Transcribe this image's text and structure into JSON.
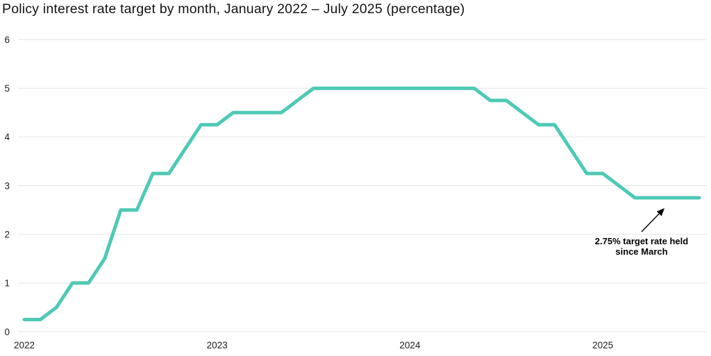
{
  "chart_data": {
    "type": "line",
    "title": "Policy interest rate target by month, January 2022 – July 2025 (percentage)",
    "x": [
      "Jan 2022",
      "Feb 2022",
      "Mar 2022",
      "Apr 2022",
      "May 2022",
      "Jun 2022",
      "Jul 2022",
      "Aug 2022",
      "Sep 2022",
      "Oct 2022",
      "Nov 2022",
      "Dec 2022",
      "Jan 2023",
      "Feb 2023",
      "Mar 2023",
      "Apr 2023",
      "May 2023",
      "Jun 2023",
      "Jul 2023",
      "Aug 2023",
      "Sep 2023",
      "Oct 2023",
      "Nov 2023",
      "Dec 2023",
      "Jan 2024",
      "Feb 2024",
      "Mar 2024",
      "Apr 2024",
      "May 2024",
      "Jun 2024",
      "Jul 2024",
      "Aug 2024",
      "Sep 2024",
      "Oct 2024",
      "Nov 2024",
      "Dec 2024",
      "Jan 2025",
      "Feb 2025",
      "Mar 2025",
      "Apr 2025",
      "May 2025",
      "Jun 2025",
      "Jul 2025"
    ],
    "values": [
      0.25,
      0.25,
      0.5,
      1,
      1,
      1.5,
      2.5,
      2.5,
      3.25,
      3.25,
      3.75,
      4.25,
      4.25,
      4.5,
      4.5,
      4.5,
      4.5,
      4.75,
      5,
      5,
      5,
      5,
      5,
      5,
      5,
      5,
      5,
      5,
      5,
      4.75,
      4.75,
      4.5,
      4.25,
      4.25,
      3.75,
      3.25,
      3.25,
      3,
      2.75,
      2.75,
      2.75,
      2.75,
      2.75
    ],
    "xlabel": "",
    "ylabel": "",
    "ylim": [
      0,
      6
    ],
    "y_ticks": [
      0,
      1,
      2,
      3,
      4,
      5,
      6
    ],
    "x_ticks": [
      {
        "label": "2022",
        "month_index": 0
      },
      {
        "label": "2023",
        "month_index": 12
      },
      {
        "label": "2024",
        "month_index": 24
      },
      {
        "label": "2025",
        "month_index": 36
      }
    ],
    "grid": true,
    "legend_position": "none",
    "line_color": "#4ec9b5",
    "grid_color": "#e6e6e6",
    "annotation": {
      "line1": "2.75% target rate held",
      "line2": "since March",
      "points_to_value": 2.75
    }
  }
}
